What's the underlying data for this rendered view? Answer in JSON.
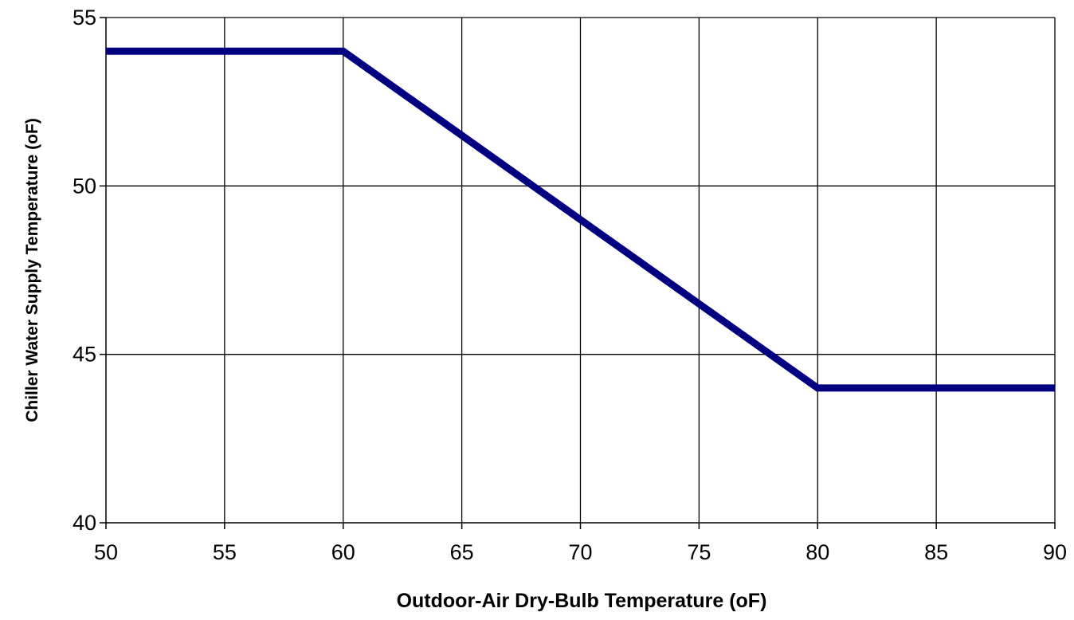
{
  "chart_data": {
    "type": "line",
    "title": "",
    "xlabel": "Outdoor-Air Dry-Bulb Temperature (oF)",
    "ylabel": "Chiller Water  Supply Temperature  (oF)",
    "xlim": [
      50,
      90
    ],
    "ylim": [
      40,
      55
    ],
    "xticks": [
      50,
      55,
      60,
      65,
      70,
      75,
      80,
      85,
      90
    ],
    "yticks": [
      40,
      45,
      50,
      55
    ],
    "x_tick_labels": [
      "50",
      "55",
      "60",
      "65",
      "70",
      "75",
      "80",
      "85",
      "90"
    ],
    "y_tick_labels": [
      "40",
      "45",
      "50",
      "55"
    ],
    "grid": true,
    "legend": "none",
    "series": [
      {
        "color": "#000080",
        "x": [
          50,
          60,
          80,
          90
        ],
        "y": [
          54,
          54,
          44,
          44
        ]
      }
    ]
  }
}
